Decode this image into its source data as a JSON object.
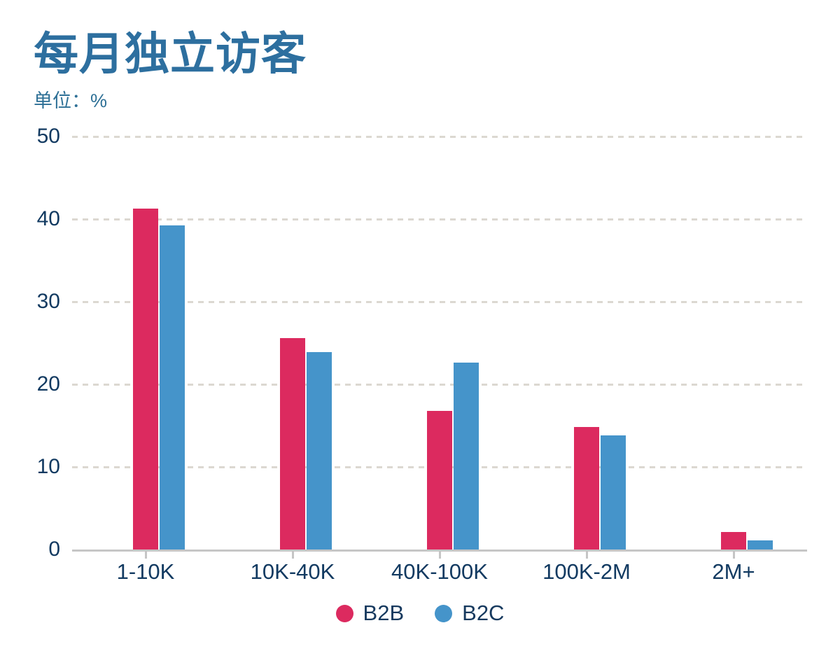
{
  "header": {
    "title": "每月独立访客",
    "unit_label": "单位：%"
  },
  "chart_data": {
    "type": "bar",
    "title": "每月独立访客",
    "ylabel": "%",
    "categories": [
      "1-10K",
      "10K-40K",
      "40K-100K",
      "100K-2M",
      "2M+"
    ],
    "series": [
      {
        "name": "B2B",
        "color": "#dc2a5f",
        "values": [
          41.3,
          25.6,
          16.8,
          14.8,
          2.1
        ]
      },
      {
        "name": "B2C",
        "color": "#4594ca",
        "values": [
          39.2,
          23.9,
          22.6,
          13.8,
          1.1
        ]
      }
    ],
    "ylim": [
      0,
      50
    ],
    "yticks": [
      0,
      10,
      20,
      30,
      40,
      50
    ],
    "grid": "horizontal-dashed",
    "legend_position": "bottom-center"
  },
  "colors": {
    "title_text": "#2d6f9f",
    "unit_text": "#2e7096",
    "axis_text": "#123a61",
    "legend_text": "#16395e",
    "gridline": "#dcd8d1",
    "axis_line": "#c6c6c6"
  }
}
